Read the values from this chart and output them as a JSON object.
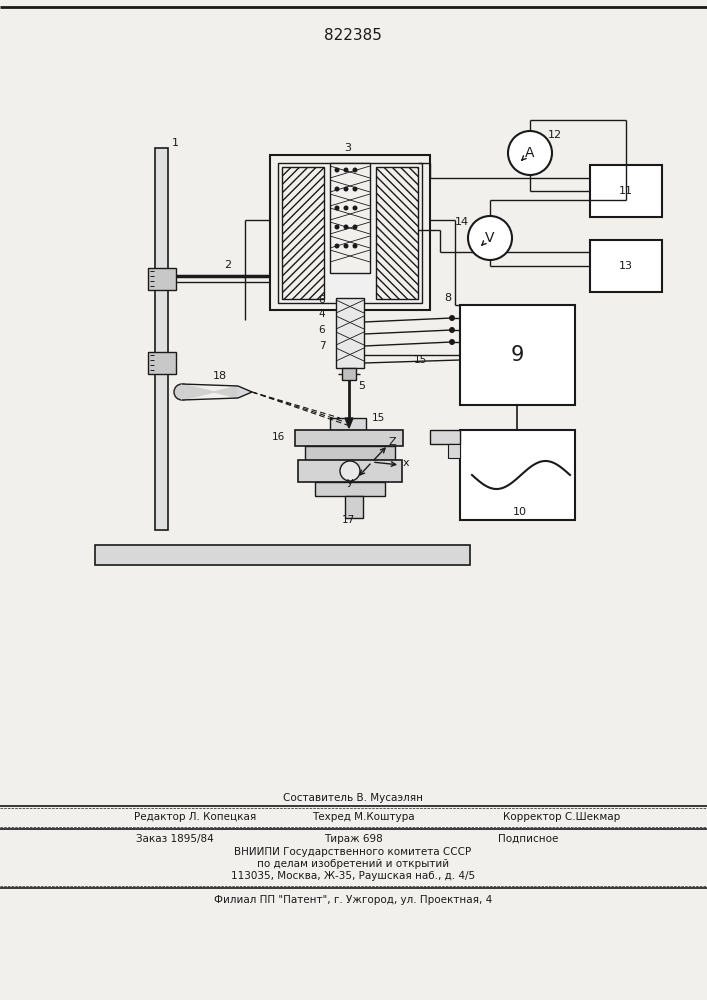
{
  "title": "822385",
  "bg_color": "#f2f0ec",
  "line_color": "#1a1a1a",
  "footer": {
    "l1": "Составитель В. Мусаэлян",
    "l2a": "Редактор Л. Копецкая",
    "l2b": "Техред М.Коштура",
    "l2c": "Корректор С.Шекмар",
    "l3a": "Заказ 1895/84",
    "l3b": "Тираж 698",
    "l3c": "Подписное",
    "l4": "ВНИИПИ Государственного комитета СССР",
    "l5": "по делам изобретений и открытий",
    "l6": "113035, Москва, Ж-35, Раушская наб., д. 4/5",
    "l7": "Филиал ПП \"Патент\", г. Ужгород, ул. Проектная, 4"
  }
}
